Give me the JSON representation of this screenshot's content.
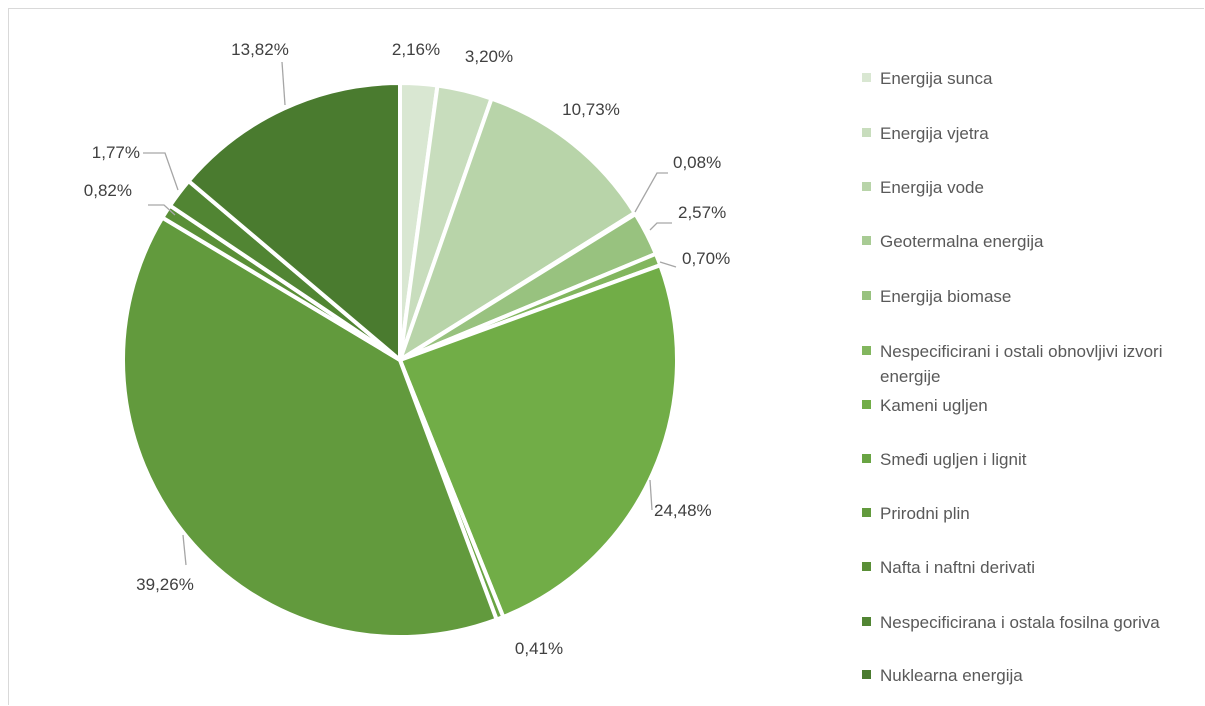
{
  "chart_data": {
    "type": "pie",
    "slices": [
      {
        "label": "Energija sunca",
        "value": 2.16,
        "value_label": "2,16%",
        "color": "#d9e7d2"
      },
      {
        "label": "Energija vjetra",
        "value": 3.2,
        "value_label": "3,20%",
        "color": "#c8ddbd"
      },
      {
        "label": "Energija vode",
        "value": 10.73,
        "value_label": "10,73%",
        "color": "#b8d4a9"
      },
      {
        "label": "Geotermalna energija",
        "value": 0.08,
        "value_label": "0,08%",
        "color": "#a8cb94"
      },
      {
        "label": "Energija biomase",
        "value": 2.57,
        "value_label": "2,57%",
        "color": "#98c27f"
      },
      {
        "label": "Nespecificirani i ostali obnovljivi izvori energije",
        "value": 0.7,
        "value_label": "0,70%",
        "color": "#82b65e"
      },
      {
        "label": "Kameni ugljen",
        "value": 24.48,
        "value_label": "24,48%",
        "color": "#71ad47"
      },
      {
        "label": "Smeđi ugljen i lignit",
        "value": 0.41,
        "value_label": "0,41%",
        "color": "#69a443"
      },
      {
        "label": "Prirodni plin",
        "value": 39.26,
        "value_label": "39,26%",
        "color": "#629a3d"
      },
      {
        "label": "Nafta i naftni derivati",
        "value": 0.82,
        "value_label": "0,82%",
        "color": "#5a8f37"
      },
      {
        "label": "Nespecificirana i ostala fosilna goriva",
        "value": 1.77,
        "value_label": "1,77%",
        "color": "#518533"
      },
      {
        "label": "Nuklearna energija",
        "value": 13.82,
        "value_label": "13,82%",
        "color": "#4a7b2f"
      }
    ],
    "legend_position": "right"
  }
}
